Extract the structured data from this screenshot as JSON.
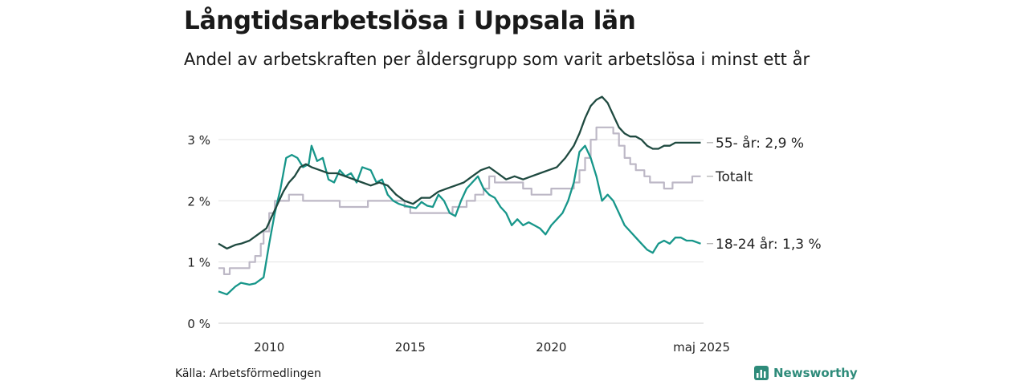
{
  "header": {
    "title": "Långtidsarbetslösa i Uppsala län",
    "subtitle": "Andel av arbetskraften per åldersgrupp som varit arbetslösa i minst ett år"
  },
  "footer": {
    "source": "Källa: Arbetsförmedlingen",
    "brand": "Newsworthy",
    "brand_icon": "bar-chart-icon"
  },
  "chart_data": {
    "type": "line",
    "x_range": [
      2008.2,
      2025.4
    ],
    "ylim": [
      0,
      3.8
    ],
    "y_ticks": [
      {
        "value": 0,
        "label": "0 %"
      },
      {
        "value": 1,
        "label": "1 %"
      },
      {
        "value": 2,
        "label": "2 %"
      },
      {
        "value": 3,
        "label": "3 %"
      }
    ],
    "x_ticks": [
      {
        "value": 2010,
        "label": "2010"
      },
      {
        "value": 2015,
        "label": "2015"
      },
      {
        "value": 2020,
        "label": "2020"
      },
      {
        "value": 2025.33,
        "label": "maj 2025"
      }
    ],
    "grid": true,
    "series": [
      {
        "name": "Totalt",
        "label": "Totalt",
        "color": "#bdb8c6",
        "step": true,
        "x": [
          2008.2,
          2008.4,
          2008.6,
          2009.0,
          2009.3,
          2009.5,
          2009.7,
          2009.8,
          2010.0,
          2010.2,
          2010.5,
          2010.7,
          2010.9,
          2011.2,
          2011.5,
          2012.0,
          2012.5,
          2013.0,
          2013.5,
          2014.0,
          2014.5,
          2014.8,
          2015.0,
          2015.5,
          2016.0,
          2016.5,
          2017.0,
          2017.3,
          2017.6,
          2017.8,
          2018.0,
          2018.5,
          2019.0,
          2019.3,
          2019.5,
          2020.0,
          2020.5,
          2020.8,
          2021.0,
          2021.2,
          2021.4,
          2021.6,
          2021.8,
          2022.0,
          2022.2,
          2022.4,
          2022.6,
          2022.8,
          2023.0,
          2023.3,
          2023.5,
          2023.8,
          2024.0,
          2024.3,
          2024.5,
          2024.8,
          2025.0,
          2025.3
        ],
        "values": [
          0.9,
          0.8,
          0.9,
          0.9,
          1.0,
          1.1,
          1.3,
          1.5,
          1.8,
          2.0,
          2.0,
          2.1,
          2.1,
          2.0,
          2.0,
          2.0,
          1.9,
          1.9,
          2.0,
          2.0,
          2.0,
          1.9,
          1.8,
          1.8,
          1.8,
          1.9,
          2.0,
          2.1,
          2.2,
          2.4,
          2.3,
          2.3,
          2.2,
          2.1,
          2.1,
          2.2,
          2.2,
          2.3,
          2.5,
          2.7,
          3.0,
          3.2,
          3.2,
          3.2,
          3.1,
          2.9,
          2.7,
          2.6,
          2.5,
          2.4,
          2.3,
          2.3,
          2.2,
          2.3,
          2.3,
          2.3,
          2.4,
          2.4
        ],
        "end_label": "Totalt"
      },
      {
        "name": "18-24 år",
        "label": "18-24 år: 1,3 %",
        "color": "#17968a",
        "step": false,
        "x": [
          2008.2,
          2008.5,
          2008.8,
          2009.0,
          2009.3,
          2009.5,
          2009.8,
          2010.0,
          2010.2,
          2010.4,
          2010.6,
          2010.8,
          2011.0,
          2011.2,
          2011.4,
          2011.5,
          2011.7,
          2011.9,
          2012.1,
          2012.3,
          2012.5,
          2012.7,
          2012.9,
          2013.1,
          2013.3,
          2013.6,
          2013.8,
          2014.0,
          2014.2,
          2014.4,
          2014.6,
          2014.8,
          2015.0,
          2015.2,
          2015.4,
          2015.6,
          2015.8,
          2016.0,
          2016.2,
          2016.4,
          2016.6,
          2016.8,
          2017.0,
          2017.2,
          2017.4,
          2017.6,
          2017.8,
          2018.0,
          2018.2,
          2018.4,
          2018.6,
          2018.8,
          2019.0,
          2019.2,
          2019.4,
          2019.6,
          2019.8,
          2020.0,
          2020.2,
          2020.4,
          2020.6,
          2020.8,
          2021.0,
          2021.2,
          2021.4,
          2021.6,
          2021.8,
          2022.0,
          2022.2,
          2022.4,
          2022.6,
          2022.8,
          2023.0,
          2023.2,
          2023.4,
          2023.6,
          2023.8,
          2024.0,
          2024.2,
          2024.4,
          2024.6,
          2024.8,
          2025.0,
          2025.3
        ],
        "values": [
          0.52,
          0.47,
          0.6,
          0.66,
          0.63,
          0.65,
          0.75,
          1.3,
          1.8,
          2.2,
          2.7,
          2.75,
          2.7,
          2.55,
          2.6,
          2.9,
          2.65,
          2.7,
          2.35,
          2.3,
          2.5,
          2.4,
          2.45,
          2.3,
          2.55,
          2.5,
          2.3,
          2.35,
          2.1,
          2.0,
          1.95,
          1.92,
          1.9,
          1.88,
          1.98,
          1.92,
          1.9,
          2.1,
          2.0,
          1.8,
          1.75,
          2.0,
          2.2,
          2.3,
          2.4,
          2.2,
          2.1,
          2.05,
          1.9,
          1.8,
          1.6,
          1.7,
          1.6,
          1.65,
          1.6,
          1.55,
          1.45,
          1.6,
          1.7,
          1.8,
          2.0,
          2.3,
          2.8,
          2.9,
          2.7,
          2.4,
          2.0,
          2.1,
          2.0,
          1.8,
          1.6,
          1.5,
          1.4,
          1.3,
          1.2,
          1.15,
          1.3,
          1.35,
          1.3,
          1.4,
          1.4,
          1.35,
          1.35,
          1.3
        ],
        "end_label": "18-24 år: 1,3 %"
      },
      {
        "name": "55- år",
        "label": "55- år: 2,9 %",
        "color": "#1f4a40",
        "step": false,
        "x": [
          2008.2,
          2008.5,
          2008.8,
          2009.0,
          2009.3,
          2009.6,
          2009.9,
          2010.1,
          2010.3,
          2010.5,
          2010.7,
          2010.9,
          2011.1,
          2011.3,
          2011.5,
          2011.8,
          2012.1,
          2012.4,
          2012.7,
          2013.0,
          2013.3,
          2013.6,
          2013.9,
          2014.2,
          2014.5,
          2014.8,
          2015.1,
          2015.4,
          2015.7,
          2016.0,
          2016.3,
          2016.6,
          2016.9,
          2017.2,
          2017.5,
          2017.8,
          2018.1,
          2018.4,
          2018.7,
          2019.0,
          2019.3,
          2019.6,
          2019.9,
          2020.2,
          2020.5,
          2020.8,
          2021.0,
          2021.2,
          2021.4,
          2021.6,
          2021.8,
          2022.0,
          2022.2,
          2022.4,
          2022.6,
          2022.8,
          2023.0,
          2023.2,
          2023.4,
          2023.6,
          2023.8,
          2024.0,
          2024.2,
          2024.4,
          2024.6,
          2024.8,
          2025.0,
          2025.3
        ],
        "values": [
          1.3,
          1.22,
          1.28,
          1.3,
          1.35,
          1.45,
          1.55,
          1.75,
          1.95,
          2.15,
          2.3,
          2.4,
          2.55,
          2.6,
          2.55,
          2.5,
          2.45,
          2.45,
          2.4,
          2.35,
          2.3,
          2.25,
          2.3,
          2.25,
          2.1,
          2.0,
          1.95,
          2.05,
          2.05,
          2.15,
          2.2,
          2.25,
          2.3,
          2.4,
          2.5,
          2.55,
          2.45,
          2.35,
          2.4,
          2.35,
          2.4,
          2.45,
          2.5,
          2.55,
          2.7,
          2.9,
          3.1,
          3.35,
          3.55,
          3.65,
          3.7,
          3.6,
          3.4,
          3.2,
          3.1,
          3.05,
          3.05,
          3.0,
          2.9,
          2.85,
          2.85,
          2.9,
          2.9,
          2.95,
          2.95,
          2.95,
          2.95,
          2.95
        ],
        "end_label": "55- år: 2,9 %"
      }
    ]
  }
}
